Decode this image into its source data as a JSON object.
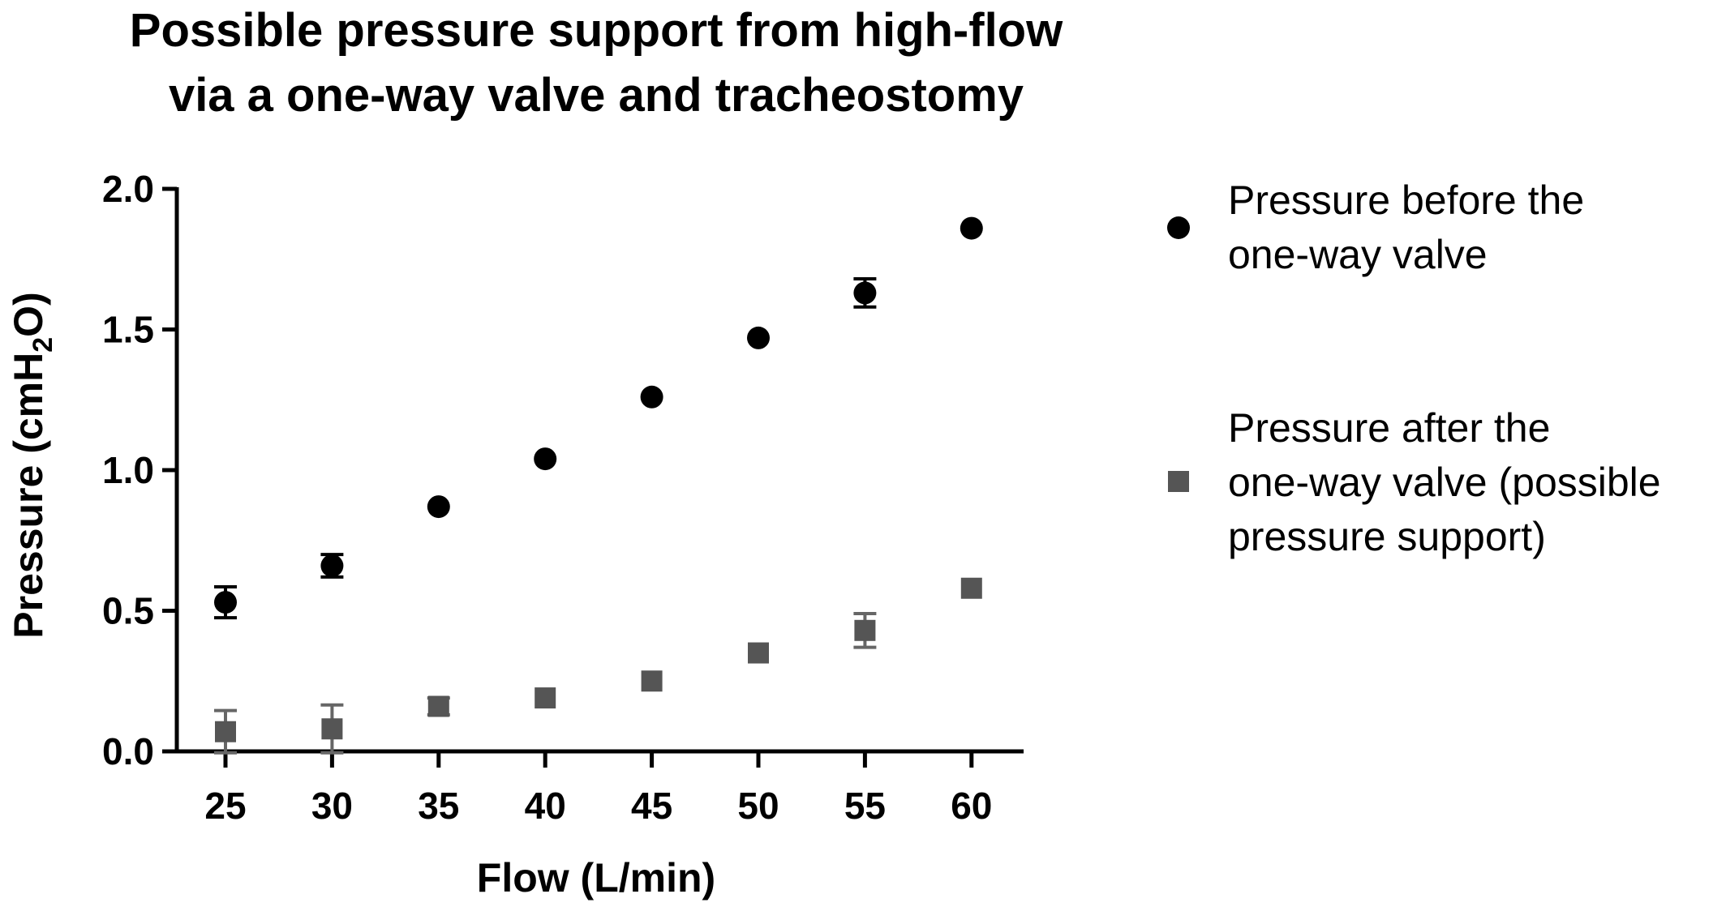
{
  "chart_data": {
    "type": "scatter",
    "title_lines": [
      "Possible pressure support from high-flow",
      "via a one-way valve and tracheostomy"
    ],
    "xlabel": "Flow (L/min)",
    "ylabel": {
      "prefix": "Pressure (cmH",
      "subscript": "2",
      "suffix": "O)"
    },
    "x_ticks": [
      25,
      30,
      35,
      40,
      45,
      50,
      55,
      60
    ],
    "y_ticks": [
      "0.0",
      "0.5",
      "1.0",
      "1.5",
      "2.0"
    ],
    "ylim": [
      0,
      2.0
    ],
    "grid": false,
    "legend_position": "right",
    "series": [
      {
        "legend_lines": [
          "Pressure before the",
          "one-way valve"
        ],
        "marker": "circle",
        "color": "#000000",
        "points": [
          {
            "x": 25,
            "y": 0.53,
            "err": 0.055
          },
          {
            "x": 30,
            "y": 0.66,
            "err": 0.04
          },
          {
            "x": 35,
            "y": 0.87,
            "err": 0.0
          },
          {
            "x": 40,
            "y": 1.04,
            "err": 0.0
          },
          {
            "x": 45,
            "y": 1.26,
            "err": 0.0
          },
          {
            "x": 50,
            "y": 1.47,
            "err": 0.0
          },
          {
            "x": 55,
            "y": 1.63,
            "err": 0.05
          },
          {
            "x": 60,
            "y": 1.86,
            "err": 0.0
          }
        ]
      },
      {
        "legend_lines": [
          "Pressure after the",
          "one-way valve (possible",
          "pressure support)"
        ],
        "marker": "square",
        "color": "#555555",
        "points": [
          {
            "x": 25,
            "y": 0.07,
            "err": 0.075
          },
          {
            "x": 30,
            "y": 0.08,
            "err": 0.085
          },
          {
            "x": 35,
            "y": 0.16,
            "err": 0.03
          },
          {
            "x": 40,
            "y": 0.19,
            "err": 0.0
          },
          {
            "x": 45,
            "y": 0.25,
            "err": 0.0
          },
          {
            "x": 50,
            "y": 0.35,
            "err": 0.0
          },
          {
            "x": 55,
            "y": 0.43,
            "err": 0.06
          },
          {
            "x": 60,
            "y": 0.58,
            "err": 0.0
          }
        ]
      }
    ]
  }
}
